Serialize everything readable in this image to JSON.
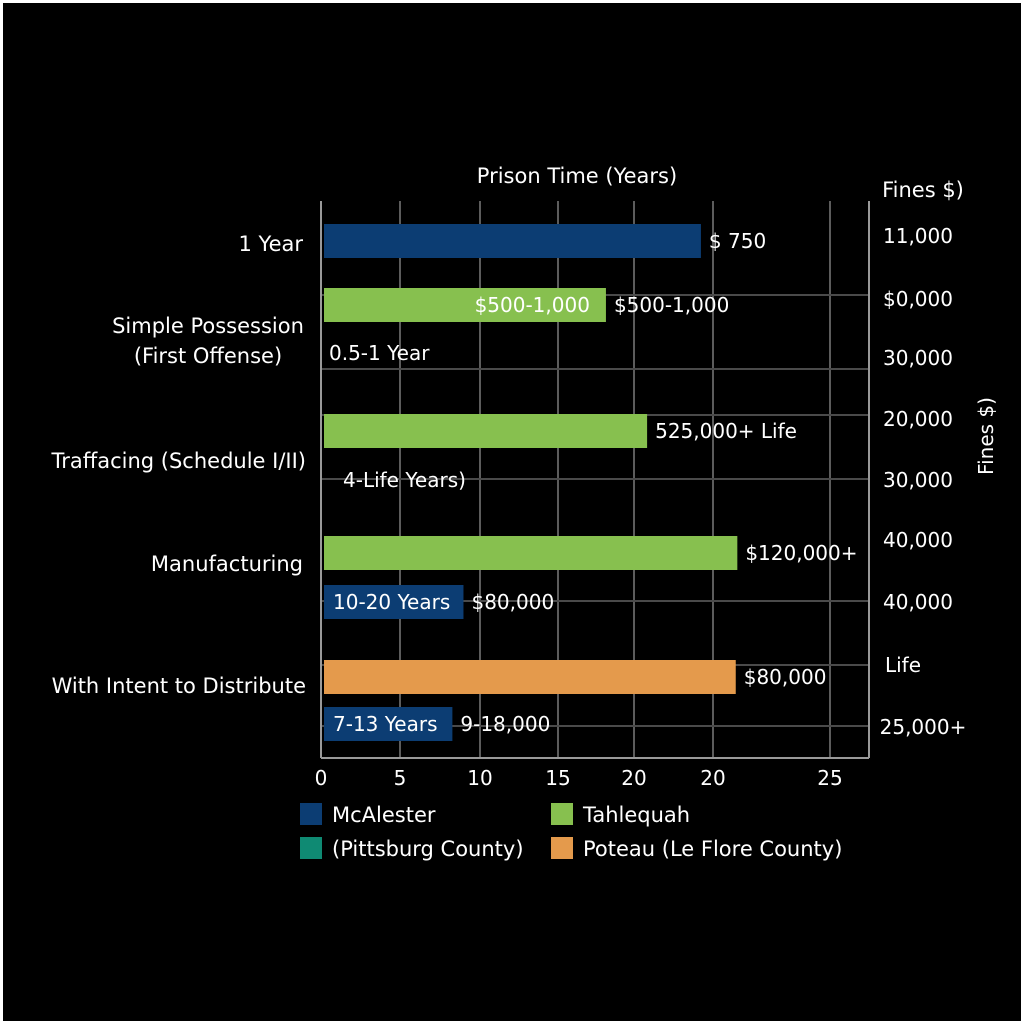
{
  "chart_data": {
    "type": "bar",
    "title": "Prison Time (Years)",
    "right_axis_title": "Fines $)",
    "right_axis_title_vertical": "Fines $)",
    "x_ticks": [
      "0",
      "5",
      "10",
      "15",
      "20",
      "20",
      "25"
    ],
    "categories": [
      "1 Year",
      "Simple Possession\n(First Offense)",
      "Traffacing (Schedule I/II)",
      "Manufacturing",
      "With Intent to Distribute"
    ],
    "right_ticks": [
      "11,000",
      "$0,000",
      "30,000",
      "20,000",
      "30,000",
      "40,000",
      "40,000",
      "Life",
      "25,000+"
    ],
    "bars": [
      {
        "category": 0,
        "series": 0,
        "value": 24,
        "inner_label": "",
        "outer_label": "$ 750"
      },
      {
        "category": 1,
        "series": 1,
        "value": 18,
        "inner_label": "$500-1,000",
        "outer_label": "$500-1,000"
      },
      {
        "category": 2,
        "series": 1,
        "value": 20.6,
        "inner_label": "",
        "outer_label": "525,000+ Life"
      },
      {
        "category": 3,
        "series": 1,
        "value": 26.3,
        "inner_label": "",
        "outer_label": "$120,000+"
      },
      {
        "category": 3,
        "series": 0,
        "value": 9,
        "inner_label": "10-20 Years",
        "outer_label": "$80,000"
      },
      {
        "category": 4,
        "series": 3,
        "value": 26.2,
        "inner_label": "",
        "outer_label": "$80,000"
      },
      {
        "category": 4,
        "series": 0,
        "value": 8.3,
        "inner_label": "7-13 Years",
        "outer_label": "9-18,000"
      }
    ],
    "range_labels": [
      "0.5-1 Year",
      "4-Life Years)"
    ],
    "series": [
      {
        "name": "McAlester",
        "color": "#0c3d73"
      },
      {
        "name": "Tahlequah",
        "color": "#87c04f"
      },
      {
        "name": "(Pittsburg County)",
        "color": "#0f8a73"
      },
      {
        "name": "Poteau (Le Flore County)",
        "color": "#e49a4c"
      }
    ],
    "grid": true,
    "legend_position": "bottom"
  }
}
